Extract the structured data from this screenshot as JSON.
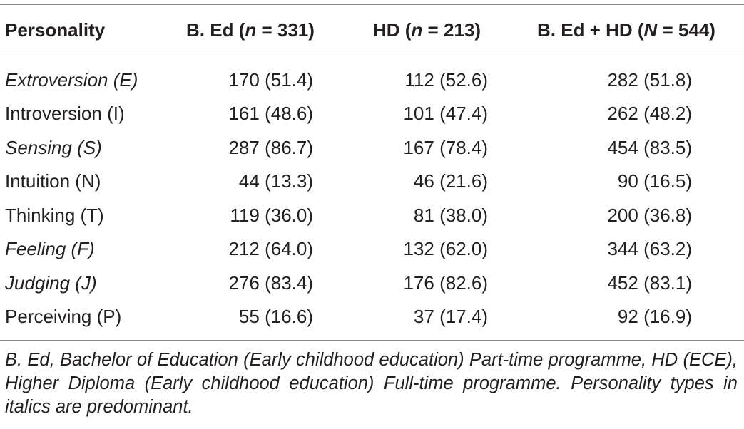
{
  "table": {
    "headers": {
      "personality": "Personality",
      "bed_prefix": "B. Ed (",
      "bed_n": "n",
      "bed_suffix": " = 331)",
      "hd_prefix": "HD (",
      "hd_n": "n",
      "hd_suffix": " = 213)",
      "total_prefix": "B. Ed + HD (",
      "total_n": "N",
      "total_suffix": " = 544)"
    },
    "rows": [
      {
        "trait": "Extroversion (E)",
        "italic": true,
        "bed": "170 (51.4)",
        "hd": "112 (52.6)",
        "total": "282 (51.8)"
      },
      {
        "trait": "Introversion (I)",
        "italic": false,
        "bed": "161 (48.6)",
        "hd": "101 (47.4)",
        "total": "262 (48.2)"
      },
      {
        "trait": "Sensing (S)",
        "italic": true,
        "bed": "287 (86.7)",
        "hd": "167 (78.4)",
        "total": "454 (83.5)"
      },
      {
        "trait": "Intuition (N)",
        "italic": false,
        "bed": "44 (13.3)",
        "hd": "46 (21.6)",
        "total": "90 (16.5)"
      },
      {
        "trait": "Thinking (T)",
        "italic": false,
        "bed": "119 (36.0)",
        "hd": "81 (38.0)",
        "total": "200 (36.8)"
      },
      {
        "trait": "Feeling (F)",
        "italic": true,
        "bed": "212 (64.0)",
        "hd": "132 (62.0)",
        "total": "344 (63.2)"
      },
      {
        "trait": "Judging (J)",
        "italic": true,
        "bed": "276 (83.4)",
        "hd": "176 (82.6)",
        "total": "452 (83.1)"
      },
      {
        "trait": "Perceiving (P)",
        "italic": false,
        "bed": "55 (16.6)",
        "hd": "37 (17.4)",
        "total": "92 (16.9)"
      }
    ],
    "footnote": "B. Ed, Bachelor of Education (Early childhood education) Part-time programme, HD (ECE), Higher Diploma (Early childhood education) Full-time programme. Personality types in italics are predominant."
  }
}
